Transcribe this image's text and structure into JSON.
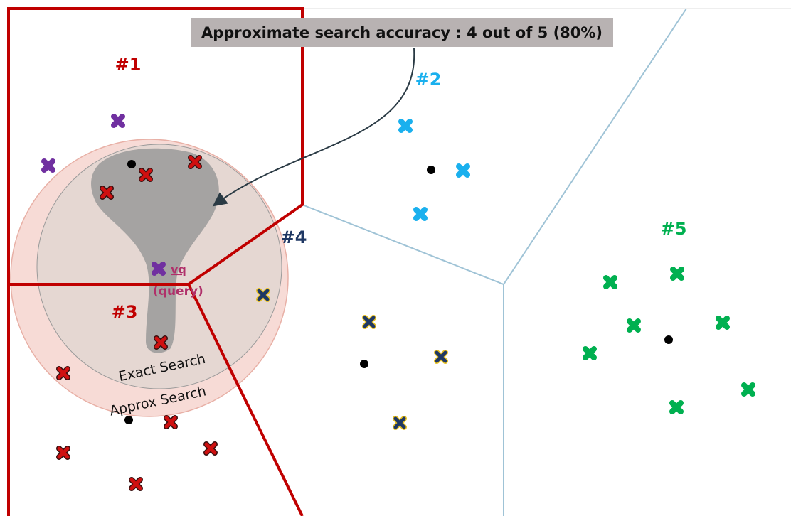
{
  "banner": "Approximate search accuracy : 4 out of 5 (80%)",
  "clusters": [
    "#1",
    "#2",
    "#3",
    "#4",
    "#5"
  ],
  "query": {
    "name": "vq",
    "label": "(query)"
  },
  "regions": {
    "exact": "Exact Search",
    "approx": "Approx Search"
  }
}
